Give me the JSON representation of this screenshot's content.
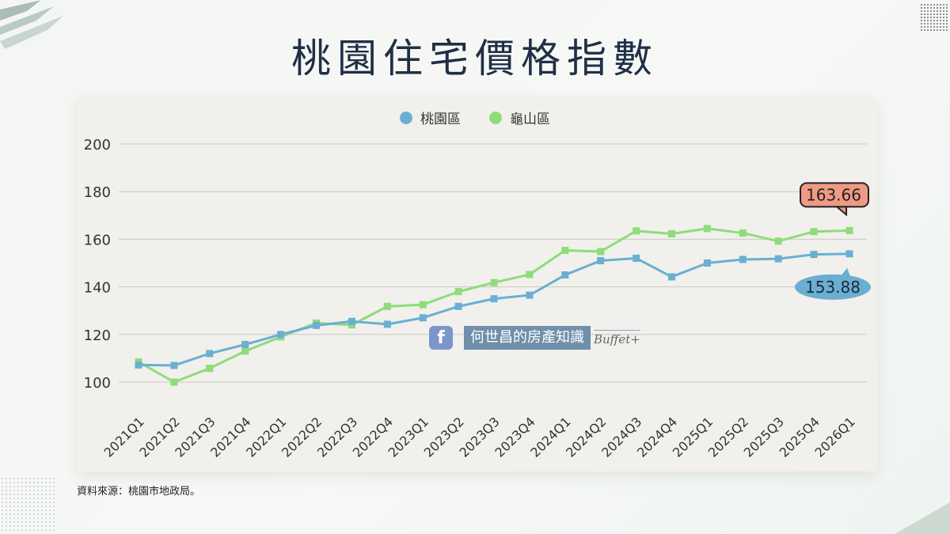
{
  "title": "桃園住宅價格指數",
  "source": "資料來源：桃園市地政局。",
  "watermark": {
    "fb_icon": "f",
    "text": "何世昌的房產知識",
    "brand": "Buffet+"
  },
  "colors": {
    "taoyuan": "#6aafd1",
    "guishan": "#8edc7a",
    "callout_guishan": "#ef9a85",
    "callout_taoyuan": "#6aafd1"
  },
  "chart_data": {
    "type": "line",
    "title": "桃園住宅價格指數",
    "categories": [
      "2021Q1",
      "2021Q2",
      "2021Q3",
      "2021Q4",
      "2022Q1",
      "2022Q2",
      "2022Q3",
      "2022Q4",
      "2023Q1",
      "2023Q2",
      "2023Q3",
      "2023Q4",
      "2024Q1",
      "2024Q2",
      "2024Q3",
      "2024Q4",
      "2025Q1",
      "2025Q2",
      "2025Q3",
      "2025Q4",
      "2026Q1"
    ],
    "series": [
      {
        "name": "桃園區",
        "values": [
          107.2,
          107.0,
          112.0,
          115.8,
          120.0,
          123.8,
          125.5,
          124.3,
          127.0,
          131.8,
          135.0,
          136.5,
          145.0,
          151.0,
          152.0,
          144.2,
          150.0,
          151.5,
          151.8,
          153.6,
          153.88
        ]
      },
      {
        "name": "龜山區",
        "values": [
          108.5,
          100.0,
          105.8,
          113.0,
          119.0,
          124.8,
          124.0,
          131.8,
          132.5,
          138.0,
          141.8,
          145.2,
          155.3,
          154.8,
          163.5,
          162.3,
          164.5,
          162.6,
          159.2,
          163.2,
          163.66
        ]
      }
    ],
    "ylim": [
      100,
      200
    ],
    "yticks": [
      100,
      120,
      140,
      160,
      180,
      200
    ],
    "grid": true,
    "legend": "top-center",
    "annotations": [
      {
        "series": "龜山區",
        "label": "163.66"
      },
      {
        "series": "桃園區",
        "label": "153.88"
      }
    ]
  }
}
